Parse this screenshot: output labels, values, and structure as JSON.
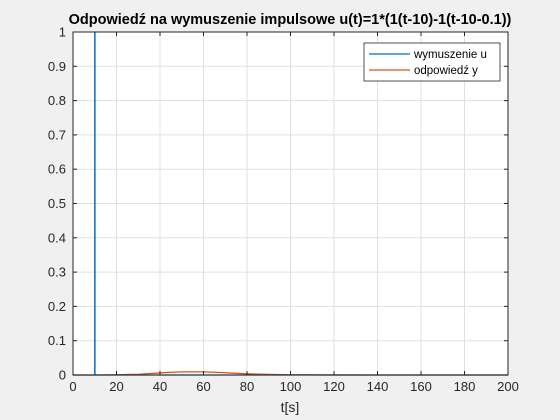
{
  "chart_data": {
    "type": "line",
    "title": "Odpowiedź na wymuszenie impulsowe u(t)=1*(1(t-10)-1(t-10-0.1))",
    "xlabel": "t[s]",
    "ylabel": "",
    "xlim": [
      0,
      200
    ],
    "ylim": [
      0,
      1
    ],
    "xticks": [
      0,
      20,
      40,
      60,
      80,
      100,
      120,
      140,
      160,
      180,
      200
    ],
    "yticks": [
      0,
      0.1,
      0.2,
      0.3,
      0.4,
      0.5,
      0.6,
      0.7,
      0.8,
      0.9,
      1
    ],
    "xtick_labels": [
      "0",
      "20",
      "40",
      "60",
      "80",
      "100",
      "120",
      "140",
      "160",
      "180",
      "200"
    ],
    "ytick_labels": [
      "0",
      "0.1",
      "0.2",
      "0.3",
      "0.4",
      "0.5",
      "0.6",
      "0.7",
      "0.8",
      "0.9",
      "1"
    ],
    "grid": true,
    "legend_position": "top-right",
    "series": [
      {
        "name": "wymuszenie u",
        "color": "#0072bd",
        "x": [
          0,
          10,
          10,
          10.1,
          10.1,
          200
        ],
        "y": [
          0,
          0,
          1,
          1,
          0,
          0
        ]
      },
      {
        "name": "odpowiedź y",
        "color": "#d95319",
        "x": [
          0,
          10,
          20,
          30,
          35,
          40,
          45,
          50,
          55,
          60,
          65,
          70,
          75,
          80,
          90,
          100,
          120,
          140,
          160,
          180,
          200
        ],
        "y": [
          0,
          0,
          0.0005,
          0.002,
          0.004,
          0.006,
          0.008,
          0.009,
          0.0092,
          0.009,
          0.008,
          0.0065,
          0.005,
          0.0035,
          0.0018,
          0.0008,
          0.0002,
          0.0001,
          0,
          0,
          0
        ]
      }
    ]
  }
}
